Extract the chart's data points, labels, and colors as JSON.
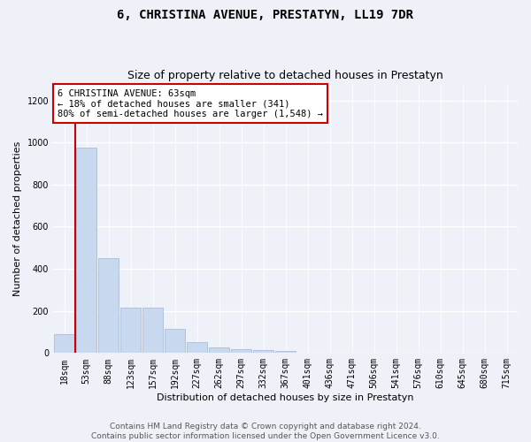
{
  "title": "6, CHRISTINA AVENUE, PRESTATYN, LL19 7DR",
  "subtitle": "Size of property relative to detached houses in Prestatyn",
  "xlabel": "Distribution of detached houses by size in Prestatyn",
  "ylabel": "Number of detached properties",
  "bar_color": "#c8d8ee",
  "bar_edge_color": "#aabdd8",
  "categories": [
    "18sqm",
    "53sqm",
    "88sqm",
    "123sqm",
    "157sqm",
    "192sqm",
    "227sqm",
    "262sqm",
    "297sqm",
    "332sqm",
    "367sqm",
    "401sqm",
    "436sqm",
    "471sqm",
    "506sqm",
    "541sqm",
    "576sqm",
    "610sqm",
    "645sqm",
    "680sqm",
    "715sqm"
  ],
  "values": [
    90,
    975,
    450,
    215,
    215,
    115,
    50,
    25,
    18,
    15,
    10,
    0,
    0,
    0,
    0,
    0,
    0,
    0,
    0,
    0,
    0
  ],
  "ylim": [
    0,
    1280
  ],
  "yticks": [
    0,
    200,
    400,
    600,
    800,
    1000,
    1200
  ],
  "vline_x": 1.5,
  "annotation_text": "6 CHRISTINA AVENUE: 63sqm\n← 18% of detached houses are smaller (341)\n80% of semi-detached houses are larger (1,548) →",
  "annotation_box_color": "white",
  "annotation_box_edge_color": "#cc0000",
  "vline_color": "#cc0000",
  "footer_line1": "Contains HM Land Registry data © Crown copyright and database right 2024.",
  "footer_line2": "Contains public sector information licensed under the Open Government Licence v3.0.",
  "background_color": "#eef2f8",
  "grid_color": "white",
  "title_fontsize": 10,
  "subtitle_fontsize": 9,
  "axis_label_fontsize": 8,
  "tick_fontsize": 7,
  "footer_fontsize": 6.5,
  "annotation_fontsize": 7.5
}
